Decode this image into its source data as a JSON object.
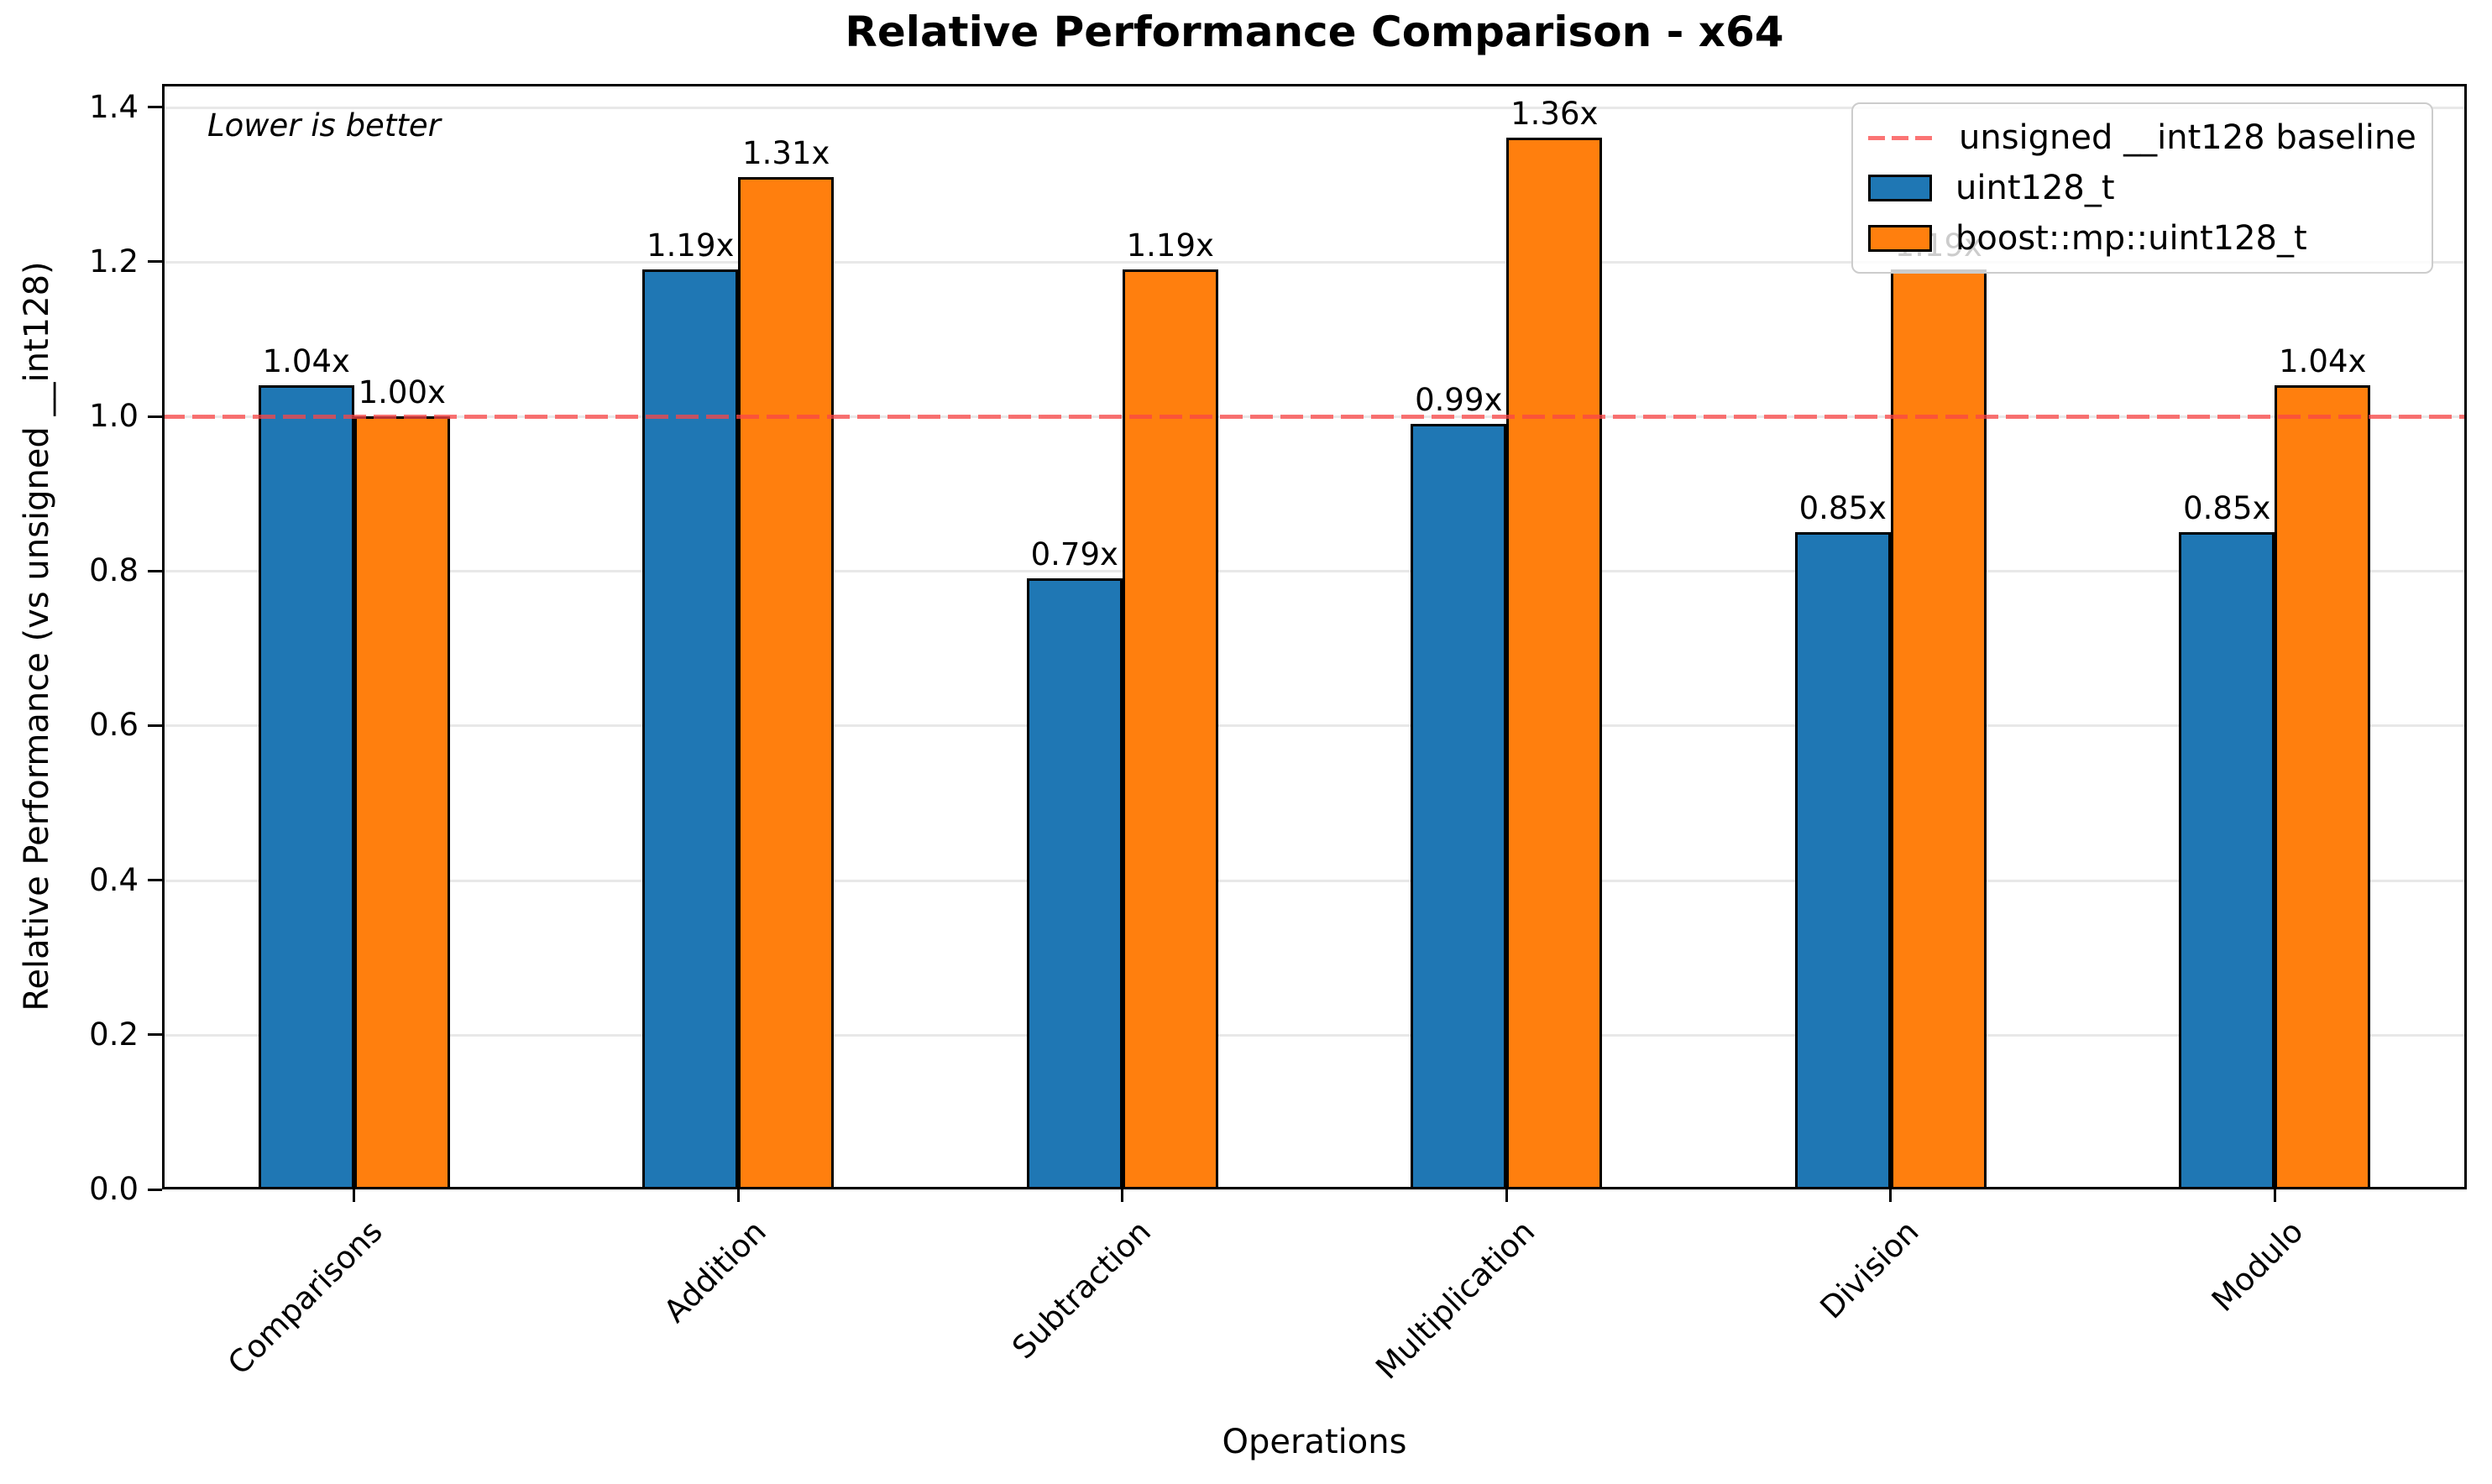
{
  "chart_data": {
    "type": "bar",
    "title": "Relative Performance Comparison - x64",
    "xlabel": "Operations",
    "ylabel": "Relative Performance (vs unsigned __int128)",
    "annotation": "Lower is better",
    "categories": [
      "Comparisons",
      "Addition",
      "Subtraction",
      "Multiplication",
      "Division",
      "Modulo"
    ],
    "series": [
      {
        "name": "uint128_t",
        "color": "#1f77b4",
        "values": [
          1.04,
          1.19,
          0.79,
          0.99,
          0.85,
          0.85
        ],
        "labels": [
          "1.04x",
          "1.19x",
          "0.79x",
          "0.99x",
          "0.85x",
          "0.85x"
        ]
      },
      {
        "name": "boost::mp::uint128_t",
        "color": "#ff7f0e",
        "values": [
          1.0,
          1.31,
          1.19,
          1.36,
          1.19,
          1.04
        ],
        "labels": [
          "1.00x",
          "1.31x",
          "1.19x",
          "1.36x",
          "1.19x",
          "1.04x"
        ]
      }
    ],
    "baseline": {
      "value": 1.0,
      "label": "unsigned __int128 baseline",
      "color": "rgba(250,70,70,0.75)"
    },
    "yticks": {
      "values": [
        0.0,
        0.2,
        0.4,
        0.6,
        0.8,
        1.0,
        1.2,
        1.4
      ],
      "labels": [
        "0.0",
        "0.2",
        "0.4",
        "0.6",
        "0.8",
        "1.0",
        "1.2",
        "1.4"
      ]
    },
    "ylim": [
      0,
      1.43
    ],
    "grid": true,
    "grid_color": "#e8e8e8",
    "bar_edge_color": "#000000",
    "legend_position": "upper right",
    "legend": {
      "entries": [
        {
          "type": "dashed-line",
          "label": "unsigned __int128 baseline"
        },
        {
          "type": "patch",
          "label": "uint128_t",
          "color": "#1f77b4"
        },
        {
          "type": "patch",
          "label": "boost::mp::uint128_t",
          "color": "#ff7f0e"
        }
      ]
    }
  }
}
